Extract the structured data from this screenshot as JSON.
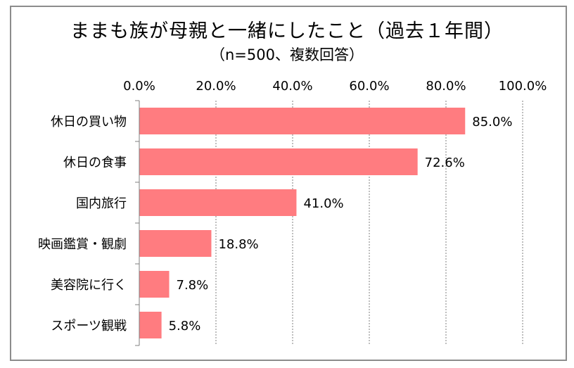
{
  "chart_data": {
    "type": "bar",
    "orientation": "horizontal",
    "title": "ままも族が母親と一緒にしたこと（過去１年間）",
    "subtitle": "（n=500、複数回答）",
    "categories": [
      "休日の買い物",
      "休日の食事",
      "国内旅行",
      "映画鑑賞・観劇",
      "美容院に行く",
      "スポーツ観戦"
    ],
    "values": [
      85.0,
      72.6,
      41.0,
      18.8,
      7.8,
      5.8
    ],
    "value_labels": [
      "85.0%",
      "72.6%",
      "41.0%",
      "18.8%",
      "7.8%",
      "5.8%"
    ],
    "xlim": [
      0,
      100
    ],
    "ticks": [
      0,
      20,
      40,
      60,
      80,
      100
    ],
    "tick_labels": [
      "0.0%",
      "20.0%",
      "40.0%",
      "60.0%",
      "80.0%",
      "100.0%"
    ],
    "axis_position": "top",
    "grid": "vertical dashed",
    "bar_color": "#ff7c80",
    "grid_color": "#7f7f7f"
  }
}
